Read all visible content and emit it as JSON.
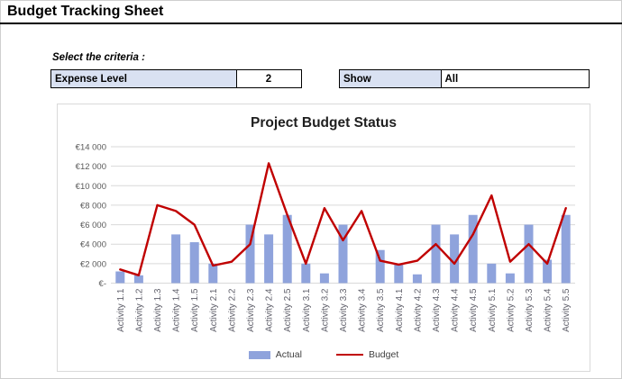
{
  "page": {
    "title": "Budget Tracking Sheet"
  },
  "criteria": {
    "heading": "Select the criteria :",
    "expense_level": {
      "label": "Expense Level",
      "value": "2"
    },
    "show": {
      "label": "Show",
      "value": "All"
    }
  },
  "chart_data": {
    "type": "combo",
    "title": "Project Budget Status",
    "categories": [
      "Activity 1.1",
      "Activity 1.2",
      "Activity 1.3",
      "Activity 1.4",
      "Activity 1.5",
      "Activity 2.1",
      "Activity 2.2",
      "Activity 2.3",
      "Activity 2.4",
      "Activity 2.5",
      "Activity 3.1",
      "Activity 3.2",
      "Activity 3.3",
      "Activity 3.4",
      "Activity 3.5",
      "Activity 4.1",
      "Activity 4.2",
      "Activity 4.3",
      "Activity 4.4",
      "Activity 4.5",
      "Activity 5.1",
      "Activity 5.2",
      "Activity 5.3",
      "Activity 5.4",
      "Activity 5.5"
    ],
    "series": [
      {
        "name": "Actual",
        "type": "bar",
        "color": "#8FA3DC",
        "values": [
          1200,
          800,
          0,
          5000,
          4200,
          2000,
          0,
          6000,
          5000,
          7000,
          2000,
          1000,
          6000,
          0,
          3400,
          1900,
          900,
          6000,
          5000,
          7000,
          2000,
          1000,
          6000,
          2400,
          7000
        ]
      },
      {
        "name": "Budget",
        "type": "line",
        "color": "#C00000",
        "values": [
          1400,
          800,
          8000,
          7400,
          6000,
          1800,
          2200,
          4000,
          12300,
          7000,
          2000,
          7700,
          4400,
          7400,
          2300,
          1900,
          2300,
          4000,
          2000,
          5000,
          9000,
          2200,
          4000,
          2000,
          7700
        ]
      }
    ],
    "y_ticks": [
      "€-",
      "€2 000",
      "€4 000",
      "€6 000",
      "€8 000",
      "€10 000",
      "€12 000",
      "€14 000"
    ],
    "ylim": [
      0,
      14000
    ],
    "y_step": 2000,
    "grid": true,
    "legend_position": "bottom",
    "axis_text_color": "#595959",
    "gridline_color": "#D9D9D9"
  },
  "ui_colors": {
    "criteria_cell_fill": "#D9E1F2",
    "cell_border": "#000000",
    "chart_border": "#D9D9D9"
  }
}
